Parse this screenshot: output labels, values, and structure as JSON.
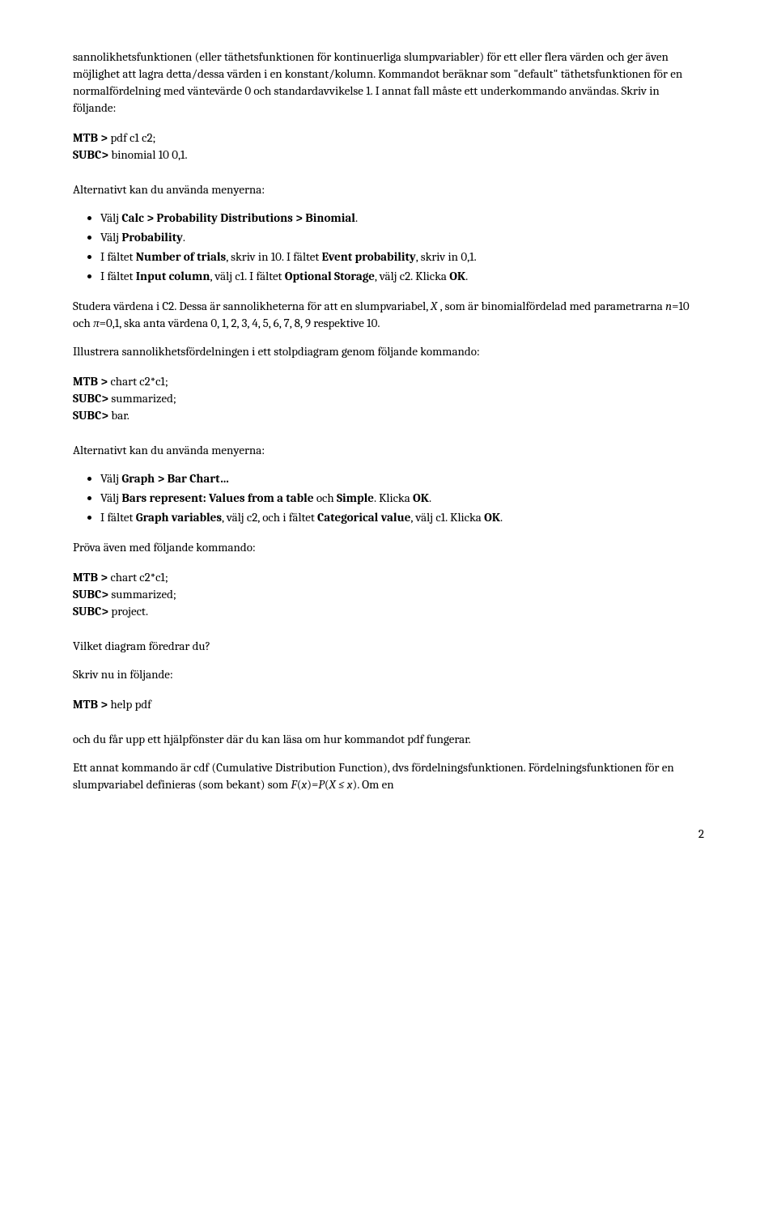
{
  "p1": "sannolikhetsfunktionen (eller täthetsfunktionen för kontinuerliga slumpvariabler) för ett eller flera värden och ger även möjlighet att lagra detta/dessa värden i en konstant/kolumn. Kommandot beräknar som \"default\" täthetsfunktionen för en normalfördelning med väntevärde 0 och standardavvikelse 1. I annat fall måste ett underkommando användas. Skriv in följande:",
  "cmd1a_prefix": "MTB > ",
  "cmd1a": "pdf c1 c2;",
  "cmd1b_prefix": "SUBC>",
  "cmd1b": " binomial 10 0,1.",
  "alt_menu": "Alternativt kan du använda menyerna:",
  "li1a_pre": "Välj ",
  "li1a_bold": "Calc > Probability Distributions > Binomial",
  "li1b_pre": "Välj ",
  "li1b_bold": "Probability",
  "li1c_pre": "I fältet ",
  "li1c_b1": "Number of trials",
  "li1c_mid1": ", skriv in 10. I fältet ",
  "li1c_b2": "Event probability",
  "li1c_tail": ", skriv in 0,1.",
  "li1d_pre": "I fältet ",
  "li1d_b1": "Input column",
  "li1d_mid1": ", välj c1. I fältet ",
  "li1d_b2": "Optional Storage",
  "li1d_mid2": ", välj c2. Klicka ",
  "li1d_b3": "OK",
  "p2_a": "Studera värdena i C2. Dessa är sannolikheterna för att en slumpvariabel, ",
  "p2_i1": "X",
  "p2_b": " , som är binomialfördelad med parametrarna ",
  "p2_i2": "n",
  "p2_c": "=10 och ",
  "p2_i3": "π",
  "p2_d": "=0,1, ska anta värdena 0, 1, 2, 3, 4, 5, 6, 7, 8, 9 respektive 10.",
  "p3": "Illustrera sannolikhetsfördelningen i ett stolpdiagram genom följande kommando:",
  "cmd2a_prefix": "MTB > ",
  "cmd2a": "chart c2*c1;",
  "cmd2b_prefix": "SUBC>",
  "cmd2b": " summarized;",
  "cmd2c_prefix": "SUBC>",
  "cmd2c": " bar.",
  "li2a_pre": "Välj ",
  "li2a_bold": "Graph > Bar Chart…",
  "li2b_pre": "Välj ",
  "li2b_b1": "Bars represent: Values from a table",
  "li2b_mid": " och ",
  "li2b_b2": "Simple",
  "li2b_mid2": ". Klicka ",
  "li2b_b3": "OK",
  "li2c_pre": "I fältet ",
  "li2c_b1": "Graph variables",
  "li2c_mid1": ", välj c2, och i fältet ",
  "li2c_b2": "Categorical value",
  "li2c_mid2": ", välj c1. Klicka ",
  "li2c_b3": "OK",
  "p4": "Pröva även med följande kommando:",
  "cmd3a_prefix": "MTB > ",
  "cmd3a": "chart c2*c1;",
  "cmd3b_prefix": "SUBC>",
  "cmd3b": " summarized;",
  "cmd3c_prefix": "SUBC>",
  "cmd3c": " project.",
  "p5": "Vilket diagram föredrar du?",
  "p6": "Skriv nu in följande:",
  "cmd4_prefix": "MTB > ",
  "cmd4": "help pdf",
  "p7": "och du får upp ett hjälpfönster där du kan läsa om hur kommandot pdf fungerar.",
  "p8_a": "Ett annat kommando är cdf (Cumulative Distribution Function), dvs fördelningsfunktionen. Fördelningsfunktionen för en slumpvariabel definieras (som bekant) som ",
  "p8_i1": "F",
  "p8_b": "(",
  "p8_i2": "x",
  "p8_c": ")=",
  "p8_i3": "P",
  "p8_d": "(",
  "p8_i4": "X ≤ x",
  "p8_e": "). Om en",
  "pagenum": "2"
}
